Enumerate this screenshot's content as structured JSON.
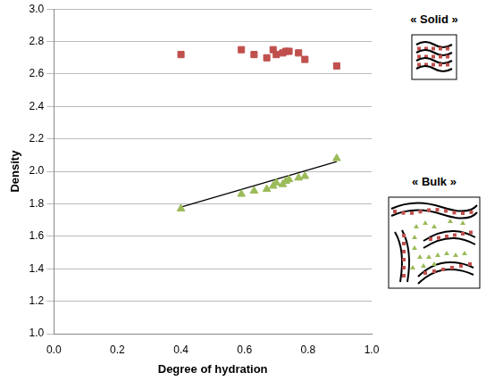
{
  "chart_data": {
    "type": "scatter",
    "x_label": "Degree of hydration",
    "y_label": "Density",
    "x": [
      0.4,
      0.59,
      0.63,
      0.67,
      0.69,
      0.7,
      0.72,
      0.73,
      0.74,
      0.77,
      0.79,
      0.89
    ],
    "series": [
      {
        "color": "#c0504d",
        "marker": "square",
        "values": [
          2.72,
          2.75,
          2.72,
          2.7,
          2.75,
          2.72,
          2.73,
          2.74,
          2.74,
          2.73,
          2.69,
          2.65
        ]
      },
      {
        "color": "#9bbb59",
        "marker": "triangle",
        "values": [
          1.77,
          1.86,
          1.88,
          1.89,
          1.91,
          1.93,
          1.92,
          1.94,
          1.95,
          1.96,
          1.97,
          2.08
        ]
      },
      {
        "color": "#000000",
        "type": "line",
        "x": [
          0.4,
          0.89
        ],
        "values": [
          1.78,
          2.06
        ]
      }
    ],
    "xlim": [
      0,
      1
    ],
    "xticks": [
      {
        "value": 0,
        "label": "0.0"
      },
      {
        "value": 0.2,
        "label": "0.2"
      },
      {
        "value": 0.4,
        "label": "0.4"
      },
      {
        "value": 0.6,
        "label": "0.6"
      },
      {
        "value": 0.8,
        "label": "0.8"
      },
      {
        "value": 1,
        "label": "1.0"
      }
    ],
    "ylim": [
      1,
      3
    ],
    "yticks": [
      {
        "value": 1,
        "label": "1.0"
      },
      {
        "value": 1.2,
        "label": "1.2"
      },
      {
        "value": 1.4,
        "label": "1.4"
      },
      {
        "value": 1.6,
        "label": "1.6"
      },
      {
        "value": 1.8,
        "label": "1.8"
      },
      {
        "value": 2,
        "label": "2.0"
      },
      {
        "value": 2.2,
        "label": "2.2"
      },
      {
        "value": 2.4,
        "label": "2.4"
      },
      {
        "value": 2.6,
        "label": "2.6"
      },
      {
        "value": 2.8,
        "label": "2.8"
      },
      {
        "value": 3,
        "label": "3.0"
      }
    ],
    "grid": "y",
    "annotations": [
      {
        "text": "« Solid »"
      },
      {
        "text": "« Bulk »"
      }
    ]
  }
}
